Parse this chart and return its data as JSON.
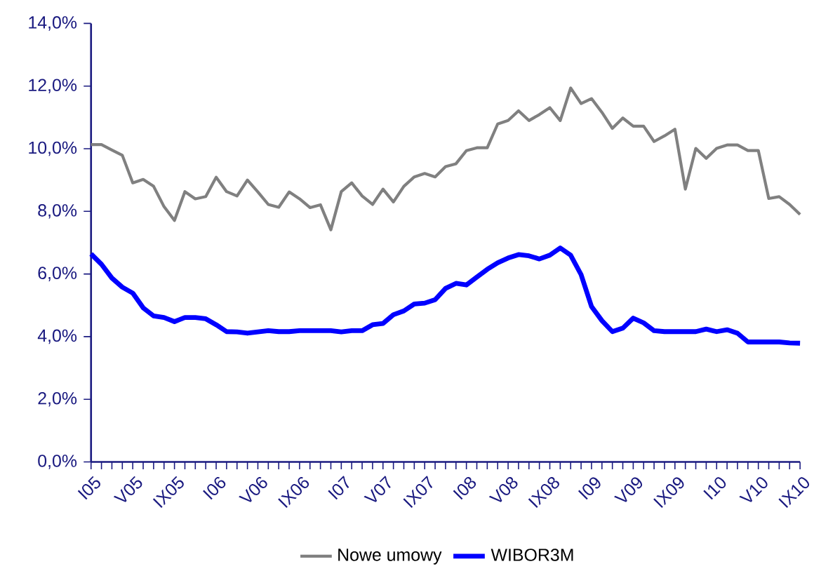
{
  "chart_data": {
    "type": "line",
    "categories": [
      "I05",
      null,
      null,
      null,
      "V05",
      null,
      null,
      null,
      "IX05",
      null,
      null,
      null,
      "I06",
      null,
      null,
      null,
      "V06",
      null,
      null,
      null,
      "IX06",
      null,
      null,
      null,
      "I07",
      null,
      null,
      null,
      "V07",
      null,
      null,
      null,
      "IX07",
      null,
      null,
      null,
      "I08",
      null,
      null,
      null,
      "V08",
      null,
      null,
      null,
      "IX08",
      null,
      null,
      null,
      "I09",
      null,
      null,
      null,
      "V09",
      null,
      null,
      null,
      "IX09",
      null,
      null,
      null,
      "I10",
      null,
      null,
      null,
      "V10",
      null,
      null,
      null,
      "IX10"
    ],
    "series": [
      {
        "name": "Nowe umowy",
        "color": "#808080",
        "values": [
          10.13,
          10.13,
          9.96,
          9.79,
          8.91,
          9.02,
          8.8,
          8.15,
          7.71,
          8.63,
          8.4,
          8.47,
          9.09,
          8.63,
          8.49,
          9.0,
          8.62,
          8.22,
          8.13,
          8.62,
          8.4,
          8.12,
          8.21,
          7.41,
          8.63,
          8.91,
          8.49,
          8.22,
          8.71,
          8.3,
          8.8,
          9.1,
          9.21,
          9.1,
          9.43,
          9.52,
          9.94,
          10.03,
          10.03,
          10.79,
          10.9,
          11.21,
          10.9,
          11.09,
          11.31,
          10.9,
          11.94,
          11.44,
          11.6,
          11.16,
          10.65,
          10.98,
          10.72,
          10.72,
          10.23,
          10.41,
          10.62,
          8.71,
          10.01,
          9.69,
          10.01,
          10.12,
          10.12,
          9.94,
          9.94,
          8.41,
          8.47,
          8.22,
          7.9
        ]
      },
      {
        "name": "WIBOR3M",
        "color": "#0000ff",
        "values": [
          6.64,
          6.31,
          5.87,
          5.58,
          5.39,
          4.92,
          4.66,
          4.61,
          4.48,
          4.61,
          4.61,
          4.57,
          4.38,
          4.16,
          4.15,
          4.11,
          4.15,
          4.19,
          4.16,
          4.16,
          4.19,
          4.19,
          4.19,
          4.19,
          4.15,
          4.19,
          4.19,
          4.38,
          4.42,
          4.7,
          4.82,
          5.04,
          5.07,
          5.18,
          5.54,
          5.7,
          5.65,
          5.9,
          6.15,
          6.36,
          6.51,
          6.62,
          6.58,
          6.48,
          6.6,
          6.83,
          6.6,
          5.98,
          4.96,
          4.51,
          4.16,
          4.27,
          4.59,
          4.44,
          4.19,
          4.16,
          4.16,
          4.16,
          4.16,
          4.24,
          4.16,
          4.22,
          4.11,
          3.83,
          3.83,
          3.83,
          3.83,
          3.8,
          3.79
        ]
      }
    ],
    "ylim": [
      0,
      14
    ],
    "yticks": [
      {
        "value": 0,
        "label": "0,0%"
      },
      {
        "value": 2,
        "label": "2,0%"
      },
      {
        "value": 4,
        "label": "4,0%"
      },
      {
        "value": 6,
        "label": "6,0%"
      },
      {
        "value": 8,
        "label": "8,0%"
      },
      {
        "value": 10,
        "label": "10,0%"
      },
      {
        "value": 12,
        "label": "12,0%"
      },
      {
        "value": 14,
        "label": "14,0%"
      }
    ],
    "grid": false,
    "legend": "bottom",
    "marker": "none",
    "line_style": "solid"
  }
}
